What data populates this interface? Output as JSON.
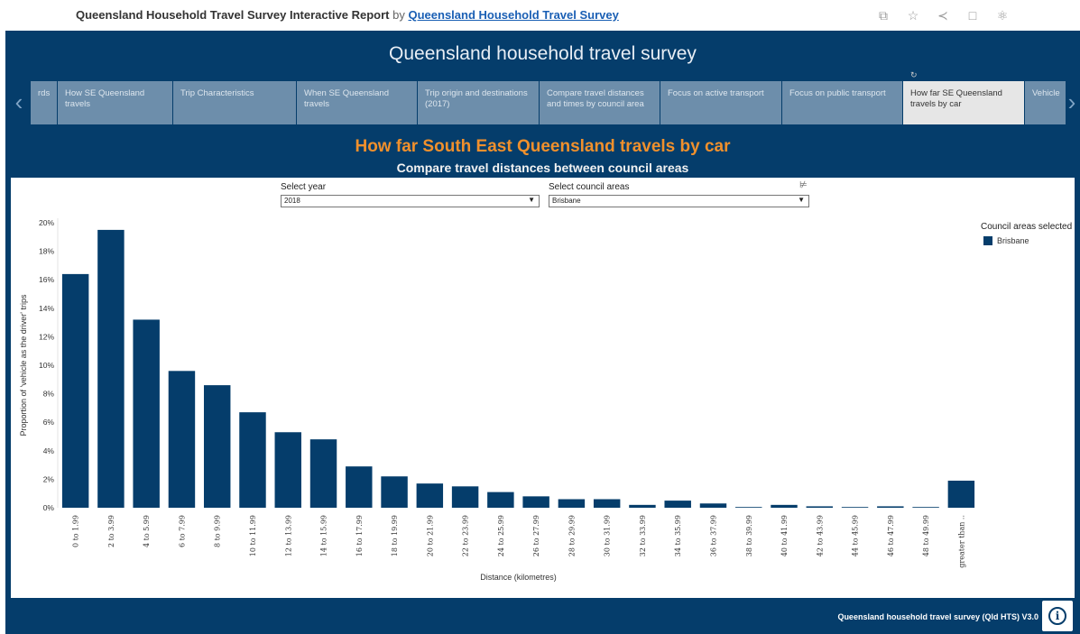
{
  "topbar": {
    "title": "Queensland Household Travel Survey Interactive Report",
    "by": "by",
    "author_link": "Queensland Household Travel Survey",
    "icons": [
      "copy-icon",
      "star-icon",
      "share-icon",
      "comment-icon",
      "badge-icon"
    ]
  },
  "dashboard": {
    "title": "Queensland household travel survey",
    "tabs": [
      {
        "label": "rds"
      },
      {
        "label": "How SE Queensland travels"
      },
      {
        "label": "Trip Characteristics"
      },
      {
        "label": "When SE Queensland travels"
      },
      {
        "label": "Trip origin and destinations (2017)"
      },
      {
        "label": "Compare travel distances and times by council area"
      },
      {
        "label": "Focus on active transport"
      },
      {
        "label": "Focus on public transport"
      },
      {
        "label": "How far SE Queensland travels by car"
      },
      {
        "label": "Vehicle"
      }
    ],
    "active_tab": 8,
    "heading": "How far South East Queensland travels by car",
    "subheading": "Compare travel distances between council areas",
    "footer": "Queensland household travel survey (Qld HTS) V3.0",
    "colors": {
      "navy": "#053d6b",
      "orange": "#f0902c",
      "bar": "#053d6b"
    }
  },
  "filters": {
    "year_label": "Select year",
    "year_value": "2018",
    "council_label": "Select council areas",
    "council_value": "Brisbane"
  },
  "legend": {
    "title": "Council areas selected",
    "items": [
      {
        "name": "Brisbane",
        "color": "#053d6b"
      }
    ]
  },
  "chart_data": {
    "type": "bar",
    "xlabel": "Distance (kilometres)",
    "ylabel": "Proportion of 'vehicle as the driver' trips",
    "ylim": [
      0,
      20
    ],
    "yticks": [
      0,
      2,
      4,
      6,
      8,
      10,
      12,
      14,
      16,
      18,
      20
    ],
    "ytick_suffix": "%",
    "grid": false,
    "legend_position": "top-right",
    "categories": [
      "0 to 1.99",
      "2 to 3.99",
      "4 to 5.99",
      "6 to 7.99",
      "8 to 9.99",
      "10 to 11.99",
      "12 to 13.99",
      "14 to 15.99",
      "16 to 17.99",
      "18 to 19.99",
      "20 to 21.99",
      "22 to 23.99",
      "24 to 25.99",
      "26 to 27.99",
      "28 to 29.99",
      "30 to 31.99",
      "32 to 33.99",
      "34 to 35.99",
      "36 to 37.99",
      "38 to 39.99",
      "40 to 41.99",
      "42 to 43.99",
      "44 to 45.99",
      "46 to 47.99",
      "48 to 49.99",
      "greater than .."
    ],
    "series": [
      {
        "name": "Brisbane",
        "values": [
          16.4,
          19.5,
          13.2,
          9.6,
          8.6,
          6.7,
          5.3,
          4.8,
          2.9,
          2.2,
          1.7,
          1.5,
          1.1,
          0.8,
          0.6,
          0.6,
          0.2,
          0.5,
          0.3,
          0.05,
          0.2,
          0.1,
          0.05,
          0.1,
          0.02,
          1.9
        ]
      }
    ]
  }
}
